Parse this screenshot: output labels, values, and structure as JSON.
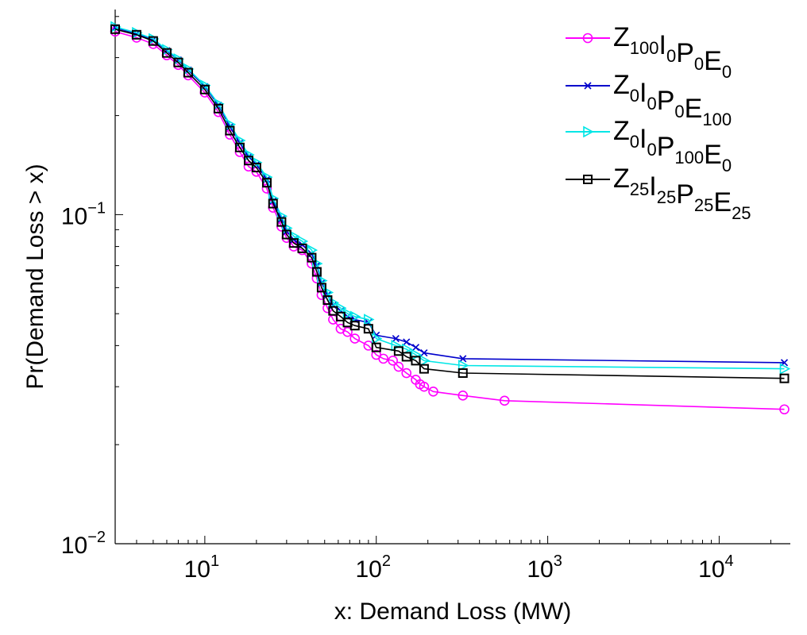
{
  "chart_data": {
    "type": "line",
    "title": "",
    "xlabel": "x: Demand Loss (MW)",
    "ylabel": "Pr(Demand Loss > x)",
    "xscale": "log",
    "yscale": "log",
    "xlim": [
      3,
      26000
    ],
    "ylim": [
      0.01,
      0.42
    ],
    "grid": false,
    "legend": "top-right",
    "x_ticks": [
      {
        "value": 10,
        "base": "10",
        "exp": "1"
      },
      {
        "value": 100,
        "base": "10",
        "exp": "2"
      },
      {
        "value": 1000,
        "base": "10",
        "exp": "3"
      },
      {
        "value": 10000,
        "base": "10",
        "exp": "4"
      }
    ],
    "y_ticks": [
      {
        "value": 0.01,
        "base": "10",
        "exp": "−2"
      },
      {
        "value": 0.1,
        "base": "10",
        "exp": "−1"
      }
    ],
    "series": [
      {
        "legend": [
          {
            "t": "Z",
            "s": "100"
          },
          {
            "t": "I",
            "s": "0"
          },
          {
            "t": "P",
            "s": "0"
          },
          {
            "t": "E",
            "s": "0"
          }
        ],
        "color": "#ff00ff",
        "marker": "circle",
        "points": [
          [
            3,
            0.36
          ],
          [
            4,
            0.345
          ],
          [
            5,
            0.33
          ],
          [
            6,
            0.305
          ],
          [
            7,
            0.285
          ],
          [
            8,
            0.265
          ],
          [
            10,
            0.235
          ],
          [
            12,
            0.205
          ],
          [
            14,
            0.175
          ],
          [
            16,
            0.155
          ],
          [
            18,
            0.14
          ],
          [
            20,
            0.135
          ],
          [
            23,
            0.12
          ],
          [
            25,
            0.105
          ],
          [
            28,
            0.092
          ],
          [
            30,
            0.085
          ],
          [
            33,
            0.08
          ],
          [
            37,
            0.078
          ],
          [
            42,
            0.071
          ],
          [
            45,
            0.064
          ],
          [
            48,
            0.057
          ],
          [
            52,
            0.052
          ],
          [
            56,
            0.048
          ],
          [
            62,
            0.045
          ],
          [
            68,
            0.044
          ],
          [
            75,
            0.042
          ],
          [
            90,
            0.04
          ],
          [
            100,
            0.0375
          ],
          [
            110,
            0.0365
          ],
          [
            125,
            0.036
          ],
          [
            135,
            0.0345
          ],
          [
            150,
            0.033
          ],
          [
            170,
            0.0315
          ],
          [
            180,
            0.0305
          ],
          [
            190,
            0.03
          ],
          [
            215,
            0.029
          ],
          [
            320,
            0.0282
          ],
          [
            560,
            0.0272
          ],
          [
            24000,
            0.0256
          ]
        ]
      },
      {
        "legend": [
          {
            "t": "Z",
            "s": "0"
          },
          {
            "t": "I",
            "s": "0"
          },
          {
            "t": "P",
            "s": "0"
          },
          {
            "t": "E",
            "s": "100"
          }
        ],
        "color": "#0000cc",
        "marker": "x",
        "points": [
          [
            3,
            0.37
          ],
          [
            4,
            0.355
          ],
          [
            5,
            0.34
          ],
          [
            6,
            0.315
          ],
          [
            7,
            0.295
          ],
          [
            8,
            0.275
          ],
          [
            10,
            0.245
          ],
          [
            12,
            0.215
          ],
          [
            14,
            0.185
          ],
          [
            16,
            0.165
          ],
          [
            18,
            0.15
          ],
          [
            20,
            0.142
          ],
          [
            23,
            0.128
          ],
          [
            25,
            0.11
          ],
          [
            28,
            0.097
          ],
          [
            30,
            0.089
          ],
          [
            33,
            0.084
          ],
          [
            37,
            0.081
          ],
          [
            42,
            0.076
          ],
          [
            45,
            0.07
          ],
          [
            48,
            0.062
          ],
          [
            52,
            0.057
          ],
          [
            56,
            0.053
          ],
          [
            62,
            0.051
          ],
          [
            68,
            0.049
          ],
          [
            75,
            0.048
          ],
          [
            90,
            0.047
          ],
          [
            100,
            0.043
          ],
          [
            130,
            0.042
          ],
          [
            150,
            0.041
          ],
          [
            170,
            0.0395
          ],
          [
            190,
            0.038
          ],
          [
            320,
            0.0365
          ],
          [
            24000,
            0.0355
          ]
        ]
      },
      {
        "legend": [
          {
            "t": "Z",
            "s": "0"
          },
          {
            "t": "I",
            "s": "0"
          },
          {
            "t": "P",
            "s": "100"
          },
          {
            "t": "E",
            "s": "0"
          }
        ],
        "color": "#00e6e6",
        "marker": "triangle-right",
        "points": [
          [
            3,
            0.372
          ],
          [
            4,
            0.357
          ],
          [
            5,
            0.342
          ],
          [
            6,
            0.317
          ],
          [
            7,
            0.297
          ],
          [
            8,
            0.277
          ],
          [
            10,
            0.247
          ],
          [
            12,
            0.217
          ],
          [
            14,
            0.188
          ],
          [
            16,
            0.168
          ],
          [
            18,
            0.152
          ],
          [
            20,
            0.144
          ],
          [
            23,
            0.13
          ],
          [
            25,
            0.112
          ],
          [
            28,
            0.099
          ],
          [
            30,
            0.091
          ],
          [
            33,
            0.086
          ],
          [
            37,
            0.083
          ],
          [
            42,
            0.078
          ],
          [
            45,
            0.071
          ],
          [
            48,
            0.063
          ],
          [
            52,
            0.058
          ],
          [
            56,
            0.054
          ],
          [
            62,
            0.052
          ],
          [
            68,
            0.05
          ],
          [
            75,
            0.049
          ],
          [
            90,
            0.048
          ],
          [
            100,
            0.042
          ],
          [
            130,
            0.04
          ],
          [
            150,
            0.039
          ],
          [
            170,
            0.0375
          ],
          [
            190,
            0.036
          ],
          [
            320,
            0.0348
          ],
          [
            24000,
            0.034
          ]
        ]
      },
      {
        "legend": [
          {
            "t": "Z",
            "s": "25"
          },
          {
            "t": "I",
            "s": "25"
          },
          {
            "t": "P",
            "s": "25"
          },
          {
            "t": "E",
            "s": "25"
          }
        ],
        "color": "#000000",
        "marker": "square",
        "points": [
          [
            3,
            0.366
          ],
          [
            4,
            0.352
          ],
          [
            5,
            0.337
          ],
          [
            6,
            0.31
          ],
          [
            7,
            0.29
          ],
          [
            8,
            0.27
          ],
          [
            10,
            0.24
          ],
          [
            12,
            0.21
          ],
          [
            14,
            0.18
          ],
          [
            16,
            0.16
          ],
          [
            18,
            0.146
          ],
          [
            20,
            0.139
          ],
          [
            23,
            0.125
          ],
          [
            25,
            0.108
          ],
          [
            28,
            0.095
          ],
          [
            30,
            0.087
          ],
          [
            33,
            0.082
          ],
          [
            37,
            0.079
          ],
          [
            42,
            0.074
          ],
          [
            45,
            0.067
          ],
          [
            48,
            0.06
          ],
          [
            52,
            0.055
          ],
          [
            56,
            0.051
          ],
          [
            62,
            0.049
          ],
          [
            68,
            0.047
          ],
          [
            75,
            0.046
          ],
          [
            90,
            0.045
          ],
          [
            100,
            0.0395
          ],
          [
            135,
            0.0385
          ],
          [
            150,
            0.037
          ],
          [
            170,
            0.036
          ],
          [
            190,
            0.034
          ],
          [
            320,
            0.033
          ],
          [
            24000,
            0.0318
          ]
        ]
      }
    ]
  }
}
